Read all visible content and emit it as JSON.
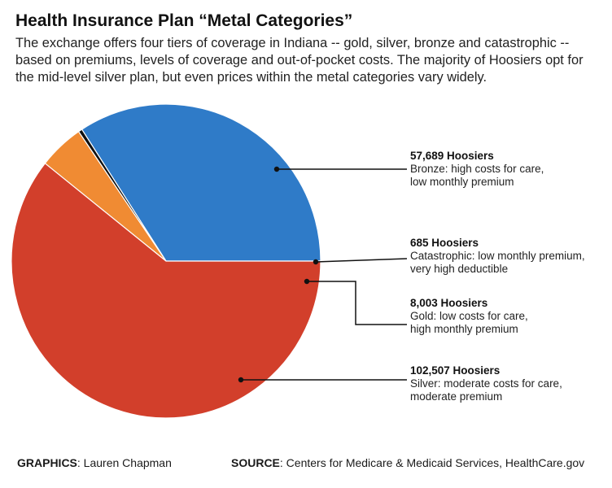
{
  "title": "Health Insurance Plan “Metal Categories”",
  "subtitle": "The exchange offers four tiers of coverage in Indiana -- gold, silver, bronze and catastrophic -- based on premiums, levels of coverage and out-of-pocket costs. The majority of Hoosiers opt for the mid-level silver plan, but even prices within the metal categories vary widely.",
  "footer": {
    "graphics_label": "GRAPHICS",
    "graphics_value": ": Lauren Chapman",
    "source_label": "SOURCE",
    "source_value": ": Centers for Medicare & Medicaid Services, HealthCare.gov"
  },
  "chart_data": {
    "type": "pie",
    "slices": [
      {
        "name": "Bronze",
        "value": 57689,
        "count_label": "57,689 Hoosiers",
        "desc_lines": [
          "Bronze: high costs for care,",
          "low monthly premium"
        ],
        "color": "#2f7bc8"
      },
      {
        "name": "Catastrophic",
        "value": 685,
        "count_label": "685 Hoosiers",
        "desc_lines": [
          "Catastrophic: low monthly premium,",
          "very high deductible"
        ],
        "color": "#111111"
      },
      {
        "name": "Gold",
        "value": 8003,
        "count_label": "8,003 Hoosiers",
        "desc_lines": [
          "Gold: low costs for care,",
          "high monthly premium"
        ],
        "color": "#f08b33"
      },
      {
        "name": "Silver",
        "value": 102507,
        "count_label": "102,507 Hoosiers",
        "desc_lines": [
          "Silver: moderate costs for care,",
          "moderate premium"
        ],
        "color": "#d23f2b"
      }
    ],
    "start_angle_deg": 0,
    "direction": "clockwise",
    "grid": false,
    "legend": "right (callout labels)"
  }
}
